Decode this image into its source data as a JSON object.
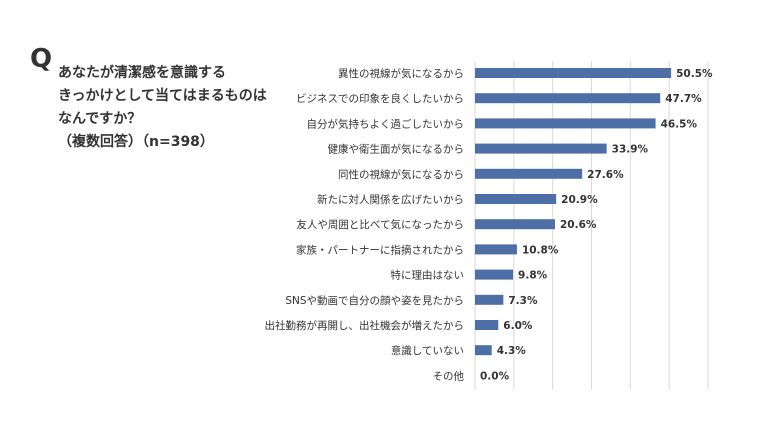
{
  "question": {
    "mark": "Q",
    "lines": [
      "あなたが清潔感を意識する",
      "きっかけとして当てはまるものは",
      "なんですか？"
    ],
    "sample": "（複数回答）（n=398）"
  },
  "chart_data": {
    "type": "bar",
    "orientation": "horizontal",
    "categories": [
      "異性の視線が気になるから",
      "ビジネスでの印象を良くしたいから",
      "自分が気持ちよく過ごしたいから",
      "健康や衛生面が気になるから",
      "同性の視線が気になるから",
      "新たに対人関係を広げたいから",
      "友人や周囲と比べて気になったから",
      "家族・パートナーに指摘されたから",
      "特に理由はない",
      "SNSや動画で自分の顔や姿を見たから",
      "出社勤務が再開し、出社機会が増えたから",
      "意識していない",
      "その他"
    ],
    "values": [
      50.5,
      47.7,
      46.5,
      33.9,
      27.6,
      20.9,
      20.6,
      10.8,
      9.8,
      7.3,
      6.0,
      4.3,
      0.0
    ],
    "value_labels": [
      "50.5%",
      "47.7%",
      "46.5%",
      "33.9%",
      "27.6%",
      "20.9%",
      "20.6%",
      "10.8%",
      "9.8%",
      "7.3%",
      "6.0%",
      "4.3%",
      "0.0%"
    ],
    "xlim": [
      0,
      60
    ],
    "grid": true,
    "bar_color": "#4e6ea6",
    "grid_color": "#d9d9d9"
  }
}
